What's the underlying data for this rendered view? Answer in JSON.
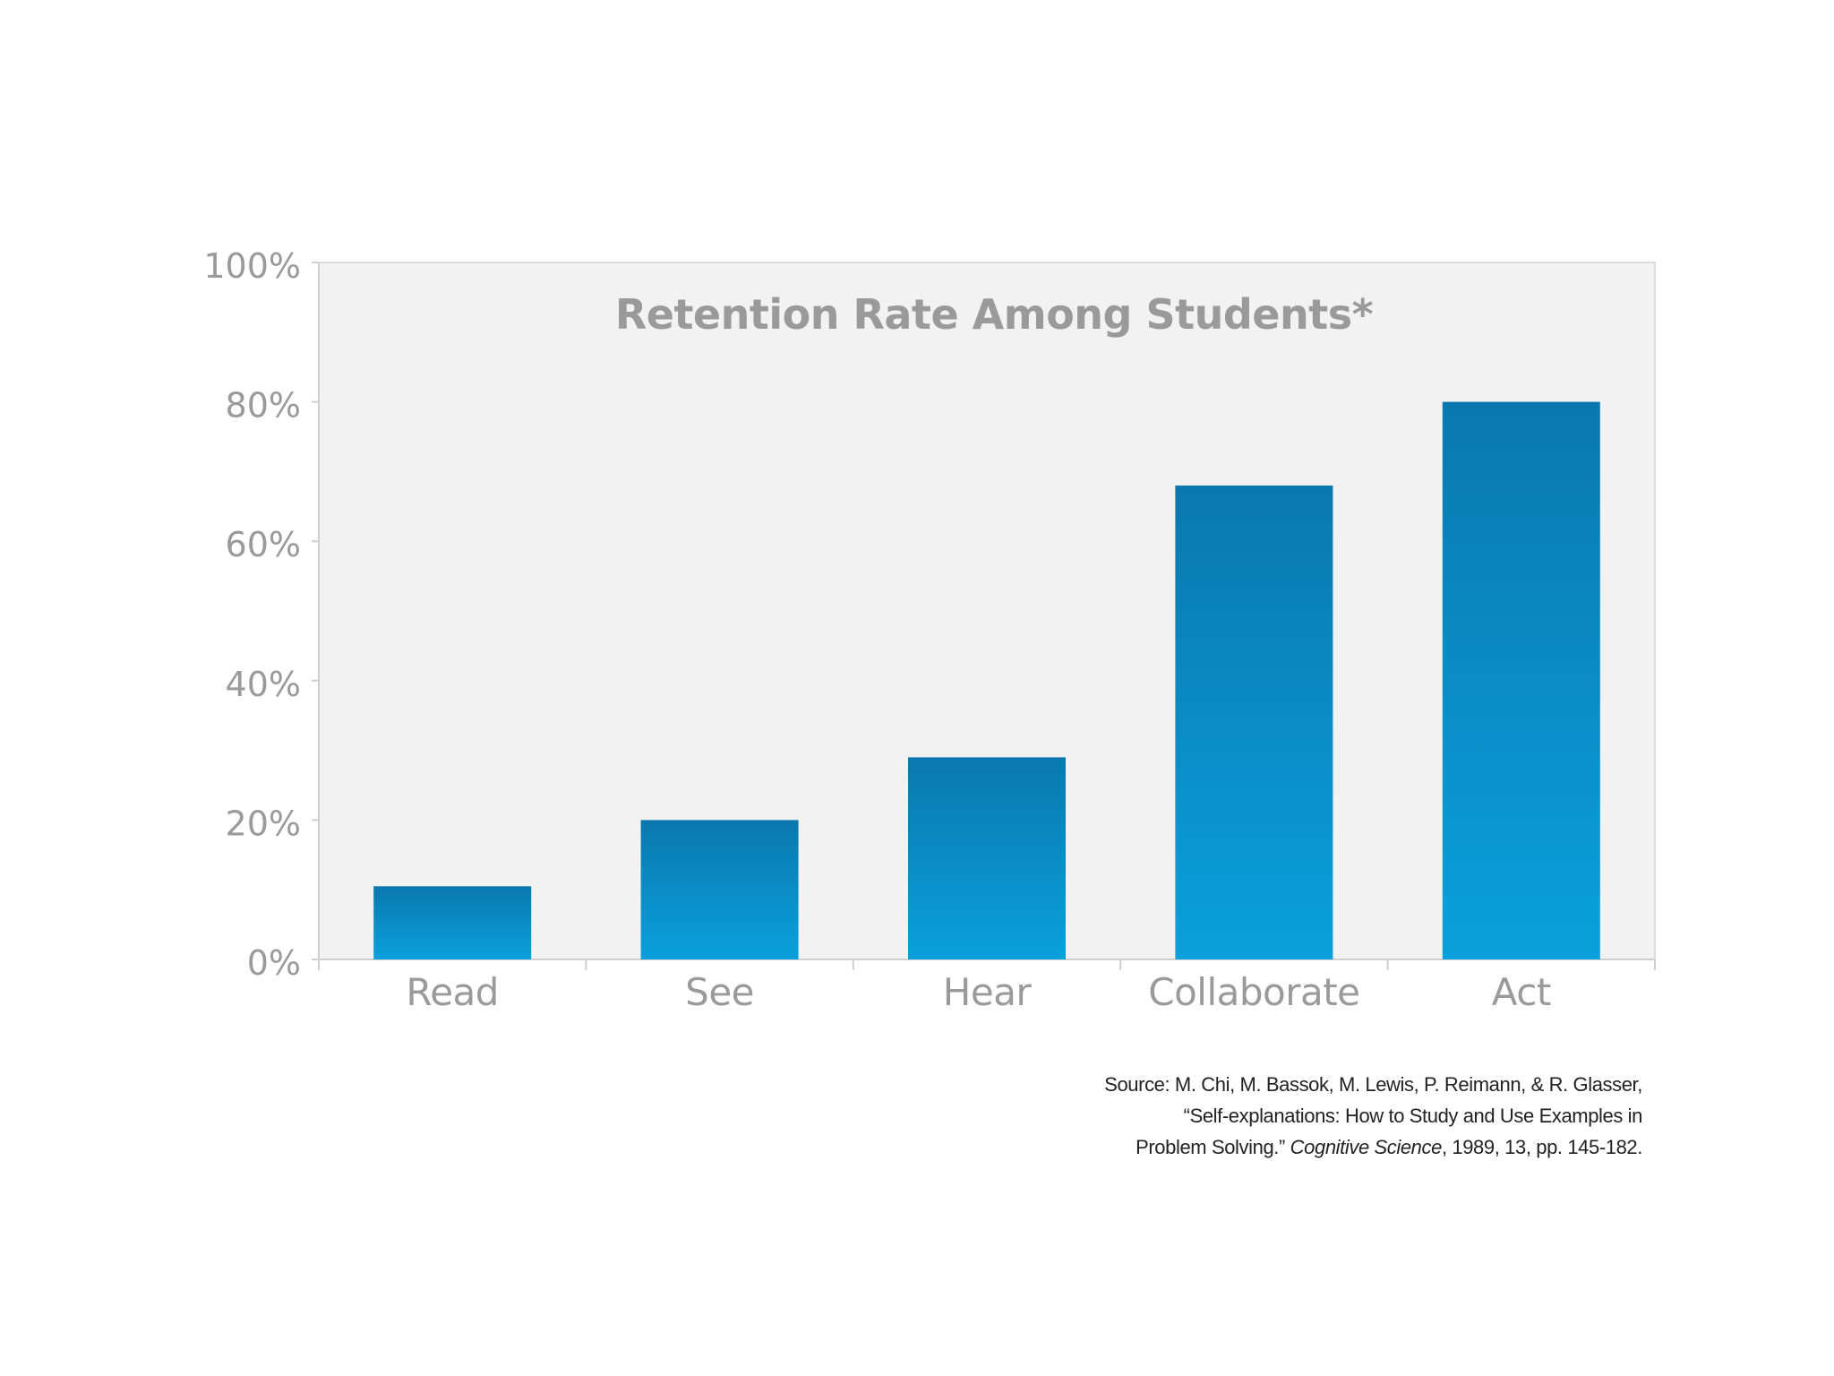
{
  "chart_data": {
    "type": "bar",
    "title": "Retention Rate Among Students*",
    "categories": [
      "Read",
      "See",
      "Hear",
      "Collaborate",
      "Act"
    ],
    "values": [
      10.5,
      20,
      29,
      68,
      80
    ],
    "ylim": [
      0,
      100
    ],
    "yticks": [
      "0%",
      "20%",
      "40%",
      "60%",
      "80%",
      "100%"
    ],
    "xlabel": "",
    "ylabel": "",
    "grid": false,
    "legend": "none"
  },
  "colors": {
    "plot_background": "#f2f2f2",
    "bar_top": "#0a78ae",
    "bar_bottom": "#0aa0dc",
    "label_text": "#9a9a9a",
    "axis_line": "#cfcfcf",
    "source_text": "#222222"
  },
  "source": {
    "line1": "Source: M. Chi, M. Bassok, M. Lewis, P. Reimann, & R. Glasser,",
    "line2": "“Self-explanations: How to Study and Use Examples in",
    "line3_prefix": "Problem Solving.”",
    "journal": "Cognitive Science",
    "line3_suffix": ", 1989, 13, pp. 145-182."
  }
}
